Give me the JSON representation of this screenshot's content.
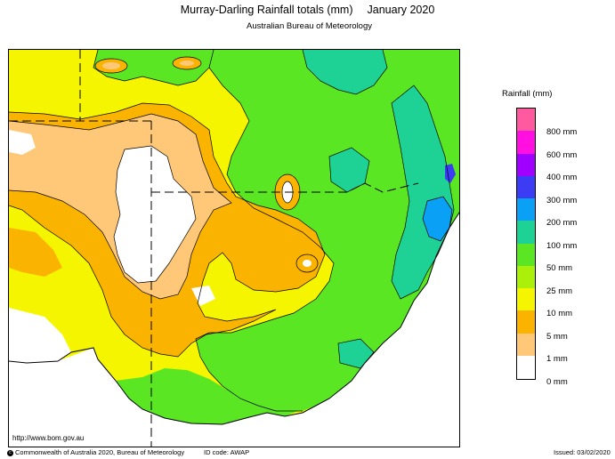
{
  "header": {
    "title": "Murray-Darling Rainfall totals (mm)",
    "period": "January 2020",
    "subtitle": "Australian Bureau of Meteorology"
  },
  "map": {
    "url": "http://www.bom.gov.au"
  },
  "legend": {
    "title": "Rainfall (mm)",
    "bands": [
      {
        "color": "#ff5aa0"
      },
      {
        "color": "#ff10e0"
      },
      {
        "color": "#a000ff"
      },
      {
        "color": "#3c3cf5"
      },
      {
        "color": "#0aa0f5"
      },
      {
        "color": "#1ed296"
      },
      {
        "color": "#5ae623"
      },
      {
        "color": "#aaf00a"
      },
      {
        "color": "#f5f500"
      },
      {
        "color": "#fab400"
      },
      {
        "color": "#ffc878"
      },
      {
        "color": "#ffffff"
      }
    ],
    "labels": [
      "800 mm",
      "600 mm",
      "400 mm",
      "300 mm",
      "200 mm",
      "100 mm",
      "50 mm",
      "25 mm",
      "10 mm",
      "5 mm",
      "1 mm",
      "0 mm"
    ]
  },
  "footer": {
    "copyright_symbol": "c",
    "copyright": "Commonwealth of Australia 2020, Bureau of Meteorology",
    "id_code": "ID code: AWAP",
    "issued": "Issued: 03/02/2020"
  }
}
